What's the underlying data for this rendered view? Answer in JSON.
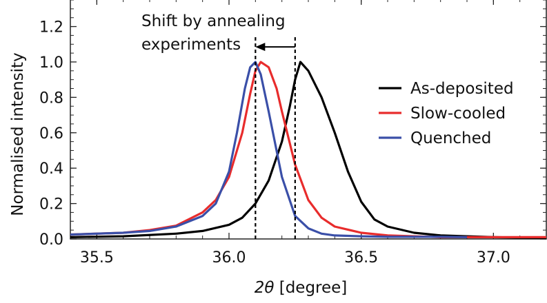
{
  "chart_data": {
    "type": "line",
    "xlabel_parts": {
      "symbol": "2θ",
      "unit": " [degree]"
    },
    "ylabel": "Normalised intensity",
    "xlim": [
      35.4,
      37.2
    ],
    "ylim": [
      0.0,
      1.35
    ],
    "x_ticks": [
      {
        "value": 35.5,
        "label": "35.5"
      },
      {
        "value": 36.0,
        "label": "36.0"
      },
      {
        "value": 36.5,
        "label": "36.5"
      },
      {
        "value": 37.0,
        "label": "37.0"
      }
    ],
    "y_ticks": [
      {
        "value": 0.0,
        "label": "0.0"
      },
      {
        "value": 0.2,
        "label": "0.2"
      },
      {
        "value": 0.4,
        "label": "0.4"
      },
      {
        "value": 0.6,
        "label": "0.6"
      },
      {
        "value": 0.8,
        "label": "0.8"
      },
      {
        "value": 1.0,
        "label": "1.0"
      },
      {
        "value": 1.2,
        "label": "1.2"
      }
    ],
    "legend_position": "right",
    "grid": false,
    "series": [
      {
        "name": "As-deposited",
        "color": "#000000",
        "x": [
          35.4,
          35.6,
          35.8,
          35.9,
          36.0,
          36.05,
          36.1,
          36.15,
          36.2,
          36.23,
          36.25,
          36.27,
          36.3,
          36.35,
          36.4,
          36.45,
          36.5,
          36.55,
          36.6,
          36.7,
          36.8,
          36.9,
          37.0,
          37.2
        ],
        "y": [
          0.01,
          0.015,
          0.03,
          0.045,
          0.08,
          0.12,
          0.2,
          0.33,
          0.55,
          0.75,
          0.9,
          1.0,
          0.95,
          0.8,
          0.6,
          0.38,
          0.21,
          0.11,
          0.07,
          0.035,
          0.02,
          0.015,
          0.01,
          0.005
        ]
      },
      {
        "name": "Slow-cooled",
        "color": "#e82c2c",
        "x": [
          35.4,
          35.6,
          35.7,
          35.8,
          35.9,
          35.95,
          36.0,
          36.05,
          36.08,
          36.1,
          36.12,
          36.15,
          36.18,
          36.2,
          36.25,
          36.3,
          36.35,
          36.4,
          36.5,
          36.6,
          36.7,
          36.8,
          36.9,
          37.2
        ],
        "y": [
          0.025,
          0.035,
          0.05,
          0.075,
          0.15,
          0.22,
          0.35,
          0.6,
          0.82,
          0.95,
          1.0,
          0.97,
          0.85,
          0.72,
          0.42,
          0.22,
          0.12,
          0.07,
          0.035,
          0.02,
          0.015,
          0.01,
          0.01,
          0.01
        ]
      },
      {
        "name": "Quenched",
        "color": "#3a4fa8",
        "x": [
          35.4,
          35.6,
          35.7,
          35.8,
          35.9,
          35.95,
          36.0,
          36.03,
          36.06,
          36.08,
          36.1,
          36.12,
          36.15,
          36.2,
          36.25,
          36.3,
          36.35,
          36.4,
          36.5,
          36.6,
          36.7,
          36.8,
          36.9
        ],
        "y": [
          0.025,
          0.035,
          0.045,
          0.07,
          0.13,
          0.2,
          0.38,
          0.6,
          0.85,
          0.97,
          1.0,
          0.93,
          0.72,
          0.35,
          0.13,
          0.06,
          0.03,
          0.02,
          0.015,
          0.012,
          0.012,
          0.012,
          0.01
        ]
      }
    ],
    "annotation": {
      "line1": "Shift by annealing",
      "line2": "experiments",
      "from_x": 36.25,
      "to_x": 36.1,
      "arrow_y": 1.085
    },
    "marker_lines": [
      36.1,
      36.25
    ]
  }
}
